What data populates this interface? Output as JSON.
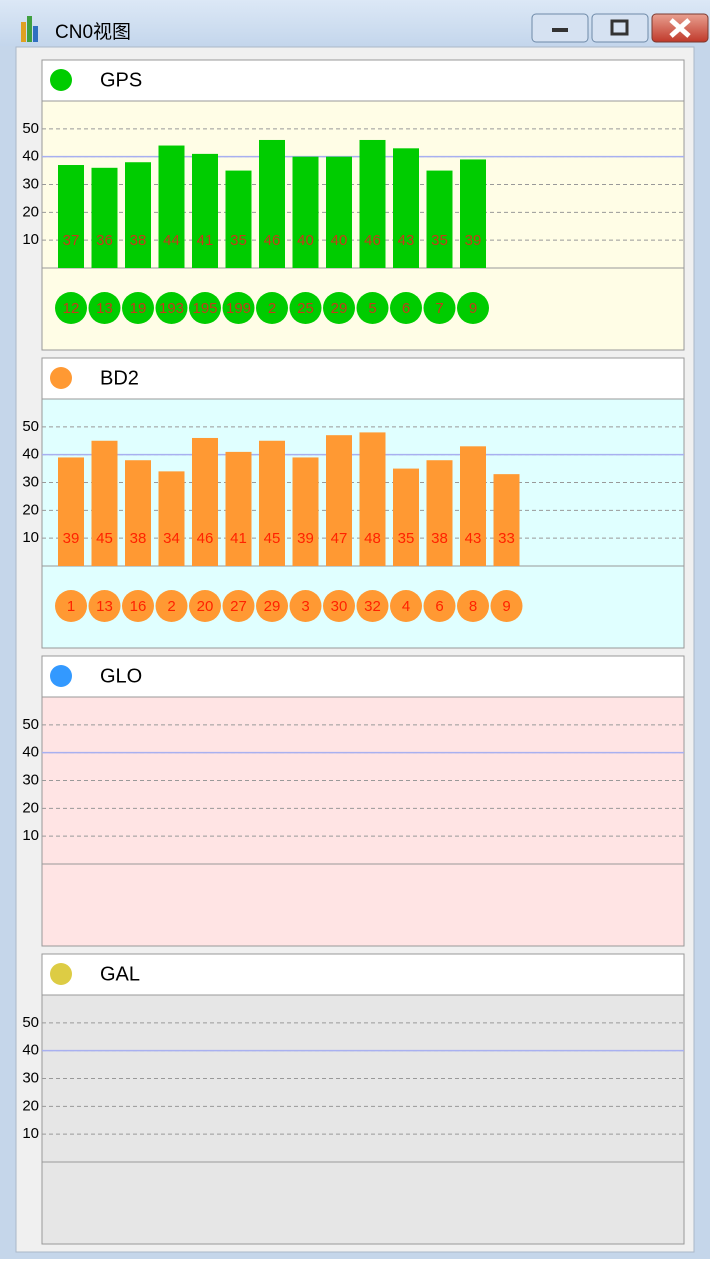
{
  "window": {
    "title": "CN0视图"
  },
  "chart_data": [
    {
      "type": "bar",
      "title": "GPS",
      "color": "#00cc00",
      "background": "#fffde6",
      "label_color": "#c43a1a",
      "categories": [
        "12",
        "13",
        "19",
        "193",
        "195",
        "199",
        "2",
        "25",
        "29",
        "5",
        "6",
        "7",
        "9"
      ],
      "values": [
        37,
        36,
        38,
        44,
        41,
        35,
        46,
        40,
        40,
        46,
        43,
        35,
        39
      ],
      "ylim": [
        0,
        60
      ],
      "yticks": [
        10,
        20,
        30,
        40,
        50
      ],
      "grid": true,
      "reference_line": 40
    },
    {
      "type": "bar",
      "title": "BD2",
      "color": "#ff9933",
      "background": "#e0ffff",
      "label_color": "#ff2200",
      "categories": [
        "1",
        "13",
        "16",
        "2",
        "20",
        "27",
        "29",
        "3",
        "30",
        "32",
        "4",
        "6",
        "8",
        "9"
      ],
      "values": [
        39,
        45,
        38,
        34,
        46,
        41,
        45,
        39,
        47,
        48,
        35,
        38,
        43,
        33
      ],
      "ylim": [
        0,
        60
      ],
      "yticks": [
        10,
        20,
        30,
        40,
        50
      ],
      "grid": true,
      "reference_line": 40
    },
    {
      "type": "bar",
      "title": "GLO",
      "color": "#3399ff",
      "background": "#ffe4e4",
      "label_color": "#ff2200",
      "categories": [],
      "values": [],
      "ylim": [
        0,
        60
      ],
      "yticks": [
        10,
        20,
        30,
        40,
        50
      ],
      "grid": true,
      "reference_line": 40
    },
    {
      "type": "bar",
      "title": "GAL",
      "color": "#ddcc44",
      "background": "#e6e6e6",
      "label_color": "#ff2200",
      "categories": [],
      "values": [],
      "ylim": [
        0,
        60
      ],
      "yticks": [
        10,
        20,
        30,
        40,
        50
      ],
      "grid": true,
      "reference_line": 40
    }
  ]
}
